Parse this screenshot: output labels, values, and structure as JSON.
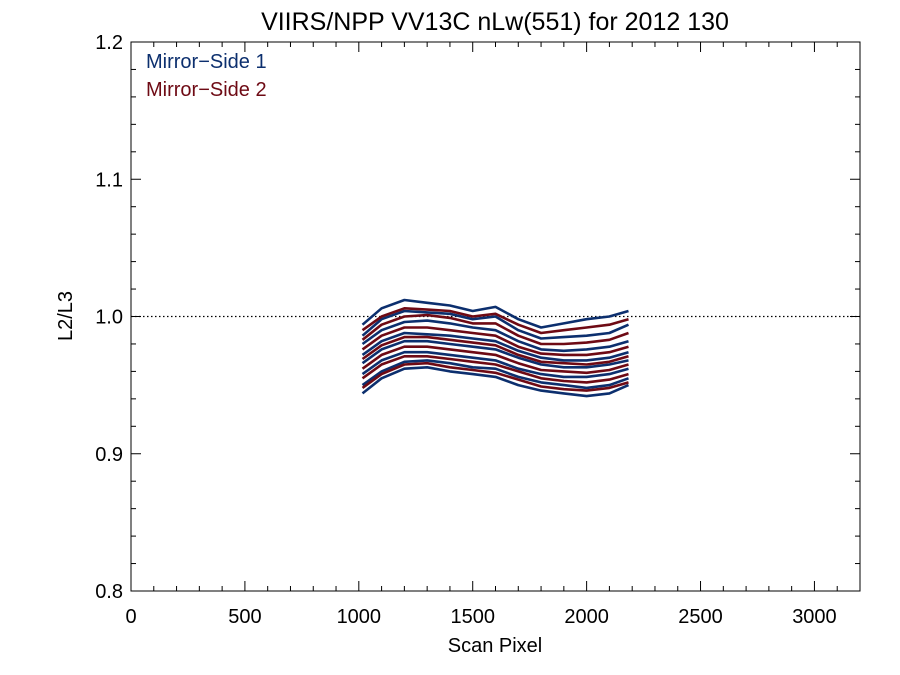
{
  "chart_data": {
    "type": "line",
    "title": "VIIRS/NPP VV13C nLw(551) for 2012 130",
    "xlabel": "Scan Pixel",
    "ylabel": "L2/L3",
    "xlim": [
      0,
      3200
    ],
    "ylim": [
      0.8,
      1.2
    ],
    "x_ticks": [
      0,
      500,
      1000,
      1500,
      2000,
      2500,
      3000
    ],
    "x_tick_labels": [
      "0",
      "500",
      "1000",
      "1500",
      "2000",
      "2500",
      "3000"
    ],
    "y_ticks": [
      0.8,
      0.9,
      1.0,
      1.1,
      1.2
    ],
    "y_tick_labels": [
      "0.8",
      "0.9",
      "1.0",
      "1.1",
      "1.2"
    ],
    "reference_line": {
      "y": 1.0,
      "style": "dotted"
    },
    "legend": {
      "placement": "top-left",
      "entries": [
        {
          "label": "Mirror−Side 1",
          "color": "#0c2f6e"
        },
        {
          "label": "Mirror−Side 2",
          "color": "#6e0a14"
        }
      ]
    },
    "x": [
      1016,
      1100,
      1200,
      1300,
      1400,
      1500,
      1600,
      1700,
      1800,
      1900,
      2000,
      2100,
      2184
    ],
    "series": [
      {
        "group": "Mirror−Side 1",
        "color": "#0c2f6e",
        "values": [
          0.994,
          1.006,
          1.012,
          1.01,
          1.008,
          1.004,
          1.007,
          0.998,
          0.992,
          0.995,
          0.998,
          1.0,
          1.004
        ]
      },
      {
        "group": "Mirror−Side 1",
        "color": "#0c2f6e",
        "values": [
          0.986,
          0.998,
          1.004,
          1.003,
          1.002,
          0.998,
          1.0,
          0.99,
          0.984,
          0.985,
          0.986,
          0.988,
          0.994
        ]
      },
      {
        "group": "Mirror−Side 1",
        "color": "#0c2f6e",
        "values": [
          0.98,
          0.99,
          0.996,
          0.997,
          0.995,
          0.992,
          0.99,
          0.982,
          0.976,
          0.975,
          0.976,
          0.978,
          0.982
        ]
      },
      {
        "group": "Mirror−Side 1",
        "color": "#0c2f6e",
        "values": [
          0.972,
          0.982,
          0.988,
          0.987,
          0.986,
          0.984,
          0.982,
          0.975,
          0.97,
          0.968,
          0.968,
          0.97,
          0.974
        ]
      },
      {
        "group": "Mirror−Side 1",
        "color": "#0c2f6e",
        "values": [
          0.966,
          0.976,
          0.982,
          0.982,
          0.98,
          0.978,
          0.976,
          0.97,
          0.965,
          0.963,
          0.963,
          0.965,
          0.968
        ]
      },
      {
        "group": "Mirror−Side 1",
        "color": "#0c2f6e",
        "values": [
          0.958,
          0.968,
          0.974,
          0.974,
          0.972,
          0.97,
          0.968,
          0.962,
          0.958,
          0.956,
          0.956,
          0.958,
          0.962
        ]
      },
      {
        "group": "Mirror−Side 1",
        "color": "#0c2f6e",
        "values": [
          0.95,
          0.96,
          0.967,
          0.968,
          0.966,
          0.963,
          0.962,
          0.956,
          0.952,
          0.95,
          0.948,
          0.95,
          0.955
        ]
      },
      {
        "group": "Mirror−Side 1",
        "color": "#0c2f6e",
        "values": [
          0.944,
          0.955,
          0.962,
          0.963,
          0.96,
          0.958,
          0.956,
          0.95,
          0.946,
          0.944,
          0.942,
          0.944,
          0.95
        ]
      },
      {
        "group": "Mirror−Side 2",
        "color": "#6e0a14",
        "values": [
          0.99,
          1.0,
          1.006,
          1.005,
          1.004,
          1.0,
          1.002,
          0.994,
          0.988,
          0.99,
          0.992,
          0.994,
          0.998
        ]
      },
      {
        "group": "Mirror−Side 2",
        "color": "#6e0a14",
        "values": [
          0.983,
          0.994,
          1.0,
          1.001,
          0.999,
          0.995,
          0.995,
          0.986,
          0.98,
          0.98,
          0.981,
          0.983,
          0.988
        ]
      },
      {
        "group": "Mirror−Side 2",
        "color": "#6e0a14",
        "values": [
          0.976,
          0.986,
          0.992,
          0.992,
          0.99,
          0.988,
          0.986,
          0.978,
          0.973,
          0.972,
          0.972,
          0.974,
          0.978
        ]
      },
      {
        "group": "Mirror−Side 2",
        "color": "#6e0a14",
        "values": [
          0.969,
          0.979,
          0.985,
          0.985,
          0.983,
          0.981,
          0.979,
          0.972,
          0.967,
          0.966,
          0.965,
          0.967,
          0.971
        ]
      },
      {
        "group": "Mirror−Side 2",
        "color": "#6e0a14",
        "values": [
          0.962,
          0.972,
          0.978,
          0.978,
          0.976,
          0.974,
          0.972,
          0.966,
          0.961,
          0.96,
          0.959,
          0.961,
          0.965
        ]
      },
      {
        "group": "Mirror−Side 2",
        "color": "#6e0a14",
        "values": [
          0.955,
          0.965,
          0.971,
          0.971,
          0.969,
          0.967,
          0.965,
          0.96,
          0.955,
          0.953,
          0.952,
          0.954,
          0.958
        ]
      },
      {
        "group": "Mirror−Side 2",
        "color": "#6e0a14",
        "values": [
          0.948,
          0.958,
          0.965,
          0.966,
          0.963,
          0.961,
          0.959,
          0.954,
          0.949,
          0.947,
          0.946,
          0.948,
          0.952
        ]
      }
    ]
  }
}
